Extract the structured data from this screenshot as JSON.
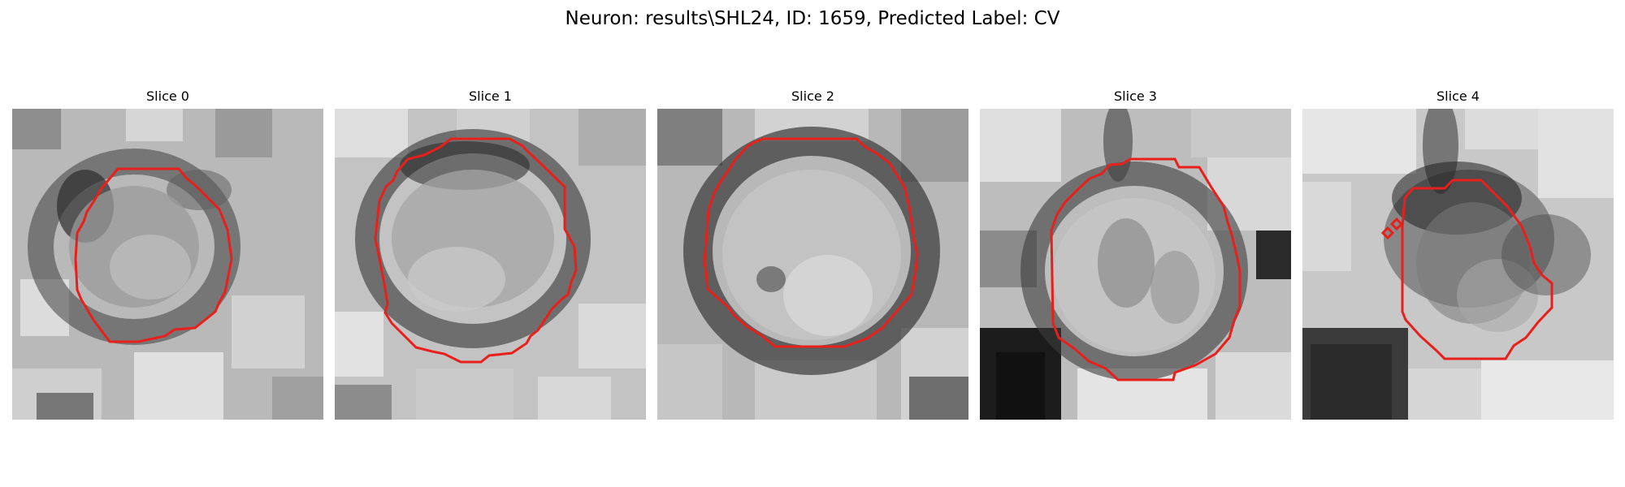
{
  "figure": {
    "title": "Neuron: results\\SHL24, ID: 1659, Predicted Label: CV",
    "contour_color": "#e8201c"
  },
  "panels": [
    {
      "title": "Slice 0"
    },
    {
      "title": "Slice 1"
    },
    {
      "title": "Slice 2"
    },
    {
      "title": "Slice 3"
    },
    {
      "title": "Slice 4"
    }
  ]
}
